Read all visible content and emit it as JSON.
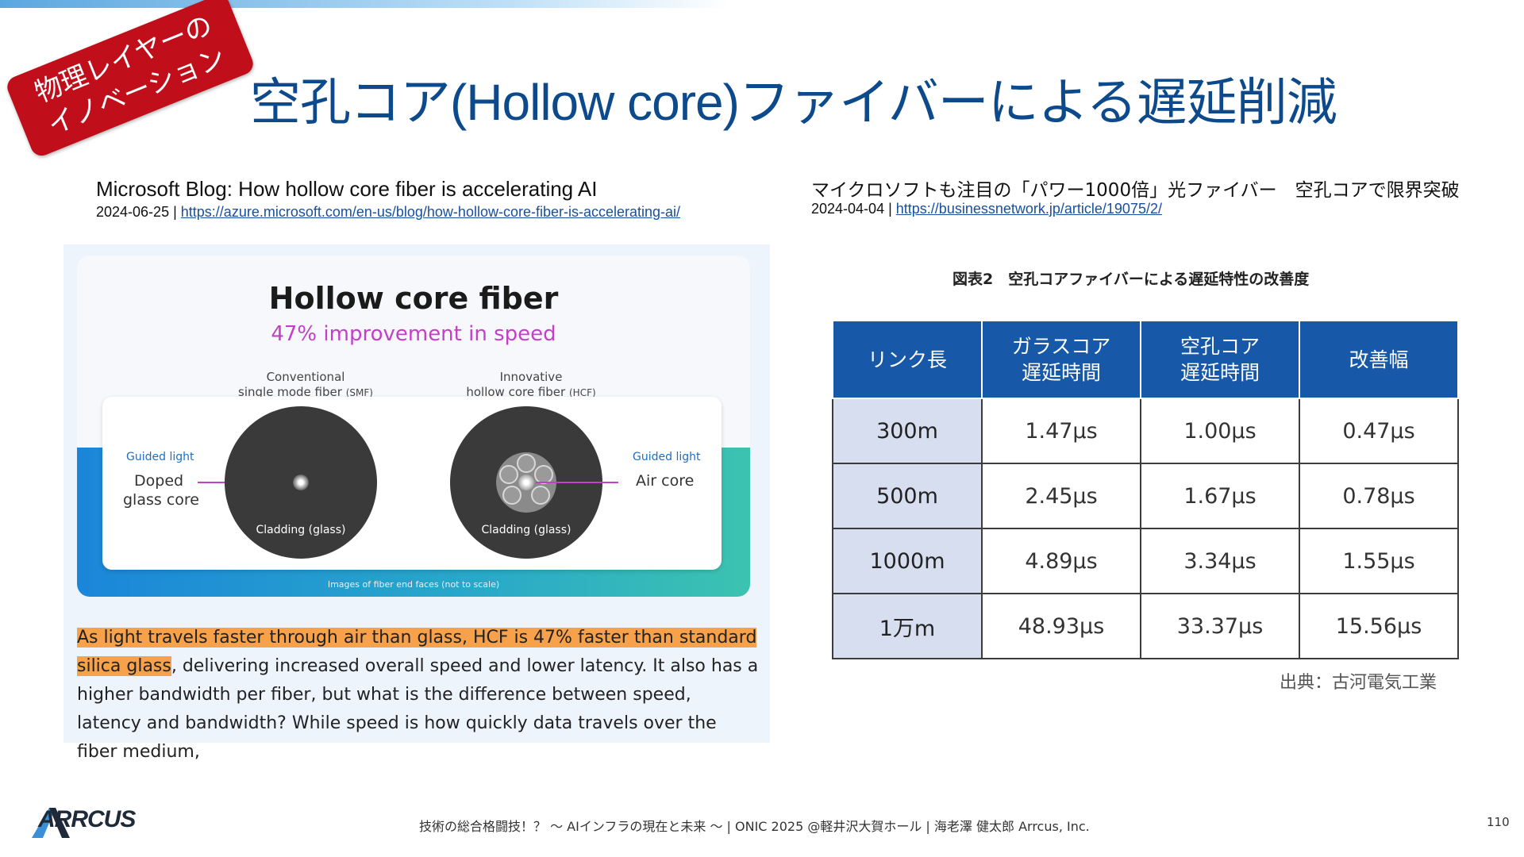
{
  "badge": {
    "line1": "物理レイヤーの",
    "line2": "イノベーション"
  },
  "title": "空孔コア(Hollow core)ファイバーによる遅延削減",
  "left_source": {
    "title": "Microsoft Blog: How hollow core fiber is accelerating AI",
    "date": "2024-06-25 |",
    "url": "https://azure.microsoft.com/en-us/blog/how-hollow-core-fiber-is-accelerating-ai/"
  },
  "right_source": {
    "title": "マイクロソフトも注目の「パワー1000倍」光ファイバー　空孔コアで限界突破",
    "date": "2024-04-04 |",
    "url": "https://businessnetwork.jp/article/19075/2/"
  },
  "figure": {
    "title": "Hollow core fiber",
    "subtitle": "47% improvement in speed",
    "smf_label_1": "Conventional",
    "smf_label_2": "single mode fiber",
    "smf_abbr": "(SMF)",
    "hcf_label_1": "Innovative",
    "hcf_label_2": "hollow core fiber",
    "hcf_abbr": "(HCF)",
    "guided_light": "Guided light",
    "doped_1": "Doped",
    "doped_2": "glass core",
    "air_core": "Air core",
    "cladding": "Cladding (glass)",
    "footnote": "Images of fiber end faces (not to scale)"
  },
  "paragraph": {
    "highlight": "As light travels faster through air than glass, HCF is 47% faster than standard silica glass",
    "rest": ", delivering increased overall speed and lower latency. It also has a higher bandwidth per fiber, but what is the difference between speed, latency and bandwidth? While speed is how quickly data travels over the fiber medium,"
  },
  "table": {
    "caption": "図表2　空孔コアファイバーによる遅延特性の改善度",
    "headers": [
      "リンク長",
      "ガラスコア\n遅延時間",
      "空孔コア\n遅延時間",
      "改善幅"
    ],
    "rows": [
      [
        "300m",
        "1.47μs",
        "1.00μs",
        "0.47μs"
      ],
      [
        "500m",
        "2.45μs",
        "1.67μs",
        "0.78μs"
      ],
      [
        "1000m",
        "4.89μs",
        "3.34μs",
        "1.55μs"
      ],
      [
        "1万m",
        "48.93μs",
        "33.37μs",
        "15.56μs"
      ]
    ],
    "source": "出典：古河電気工業"
  },
  "footer": {
    "logo": "ARRCUS",
    "text": "技術の総合格闘技！？ ～ AIインフラの現在と未来 ～ | ONIC 2025 @軽井沢大賀ホール | 海老澤 健太郎 Arrcus, Inc.",
    "page": "110"
  },
  "colors": {
    "title": "#0d4a8c",
    "badge": "#c00f1b",
    "table_header": "#1759a8",
    "highlight": "#f7a24b"
  }
}
